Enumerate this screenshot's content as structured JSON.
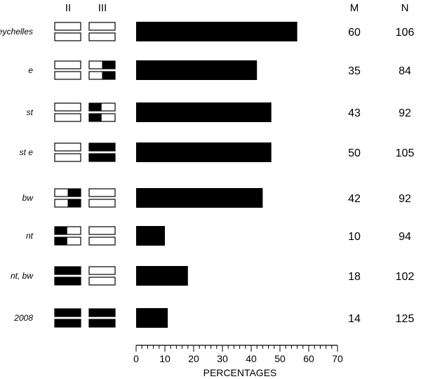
{
  "chart_data": {
    "type": "bar",
    "orientation": "horizontal",
    "xlabel": "PERCENTAGES",
    "xlim": [
      0,
      70
    ],
    "x_ticks": [
      0,
      10,
      20,
      30,
      40,
      50,
      60,
      70
    ],
    "x_minor_step": 2,
    "column_headers": {
      "chr2": "II",
      "chr3": "III",
      "m": "M",
      "n": "N"
    },
    "chromosome_fill_legend": "none | left | right | full",
    "categories": [
      "Seychelles",
      "e",
      "st",
      "st e",
      "bw",
      "nt",
      "nt, bw",
      "2008"
    ],
    "values": [
      56,
      42,
      47,
      47,
      44,
      10,
      18,
      11
    ],
    "m_values": [
      "60",
      "35",
      "43",
      "50",
      "42",
      "10",
      "18",
      "14"
    ],
    "n_values": [
      "106",
      "84",
      "92",
      "105",
      "92",
      "94",
      "102",
      "125"
    ],
    "chromosome_II": [
      "none",
      "none",
      "none",
      "none",
      "right",
      "left",
      "full",
      "full"
    ],
    "chromosome_III": [
      "none",
      "right",
      "left",
      "full",
      "none",
      "none",
      "none",
      "full"
    ],
    "bar_color": "#000000"
  }
}
